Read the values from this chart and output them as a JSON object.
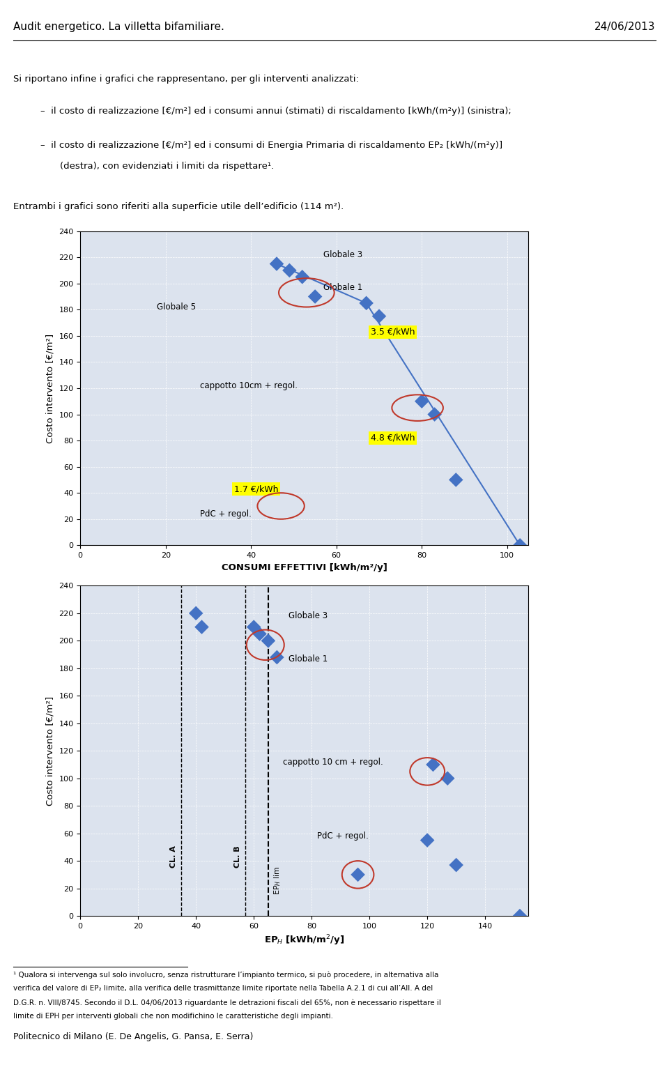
{
  "page_title_left": "Audit energetico. La villetta bifamiliare.",
  "page_title_right": "24/06/2013",
  "intro_text": "Si riportano infine i grafici che rappresentano, per gli interventi analizzati:",
  "bullet1": "il costo di realizzazione [€/m²] ed i consumi annui (stimati) di riscaldamento [kWh/(m²y)] (sinistra);",
  "bullet2_a": "il costo di realizzazione [€/m²] ed i consumi di Energia Primaria di riscaldamento EP₂ [kWh/(m²y)]",
  "bullet2_b": "(destra), con evidenziati i limiti da rispettare¹.",
  "subtitle": "Entrambi i grafici sono riferiti alla superficie utile dell’edificio (114 m²).",
  "chart1": {
    "xlabel": "CONSUMI EFFETTIVI [kWh/m²/y]",
    "ylabel": "Costo intervento [€/m²]",
    "xlim": [
      0,
      105
    ],
    "ylim": [
      0,
      240
    ],
    "xticks": [
      0,
      20,
      40,
      60,
      80,
      100
    ],
    "yticks": [
      0,
      20,
      40,
      60,
      80,
      100,
      120,
      140,
      160,
      180,
      200,
      220,
      240
    ],
    "scatter_x": [
      46,
      49,
      52,
      55,
      67,
      70,
      80,
      83,
      88,
      103
    ],
    "scatter_y": [
      215,
      210,
      205,
      190,
      185,
      175,
      110,
      100,
      50,
      0
    ],
    "line_x": [
      46,
      67,
      103
    ],
    "line_y": [
      215,
      185,
      0
    ],
    "label_Globale3": [
      57,
      222
    ],
    "label_Globale1": [
      57,
      197
    ],
    "label_Globale5": [
      18,
      182
    ],
    "label_cappotto": [
      28,
      122
    ],
    "label_PdC": [
      28,
      24
    ],
    "annot_35": [
      68,
      163
    ],
    "annot_48": [
      68,
      82
    ],
    "annot_17": [
      36,
      43
    ],
    "circles": [
      [
        53,
        193,
        13,
        22
      ],
      [
        79,
        105,
        12,
        20
      ],
      [
        47,
        30,
        11,
        20
      ]
    ],
    "background_color": "#dce3ee"
  },
  "chart2": {
    "xlabel_base": "EP",
    "xlabel_sub": "H",
    "xlabel_rest": " [kWh/m²/y]",
    "ylabel": "Costo intervento [€/m²]",
    "xlim": [
      0,
      155
    ],
    "ylim": [
      0,
      240
    ],
    "xticks": [
      0,
      20,
      40,
      60,
      80,
      100,
      120,
      140
    ],
    "yticks": [
      0,
      20,
      40,
      60,
      80,
      100,
      120,
      140,
      160,
      180,
      200,
      220,
      240
    ],
    "scatter_x": [
      40,
      42,
      60,
      62,
      65,
      68,
      96,
      120,
      122,
      127,
      130,
      152
    ],
    "scatter_y": [
      220,
      210,
      210,
      205,
      200,
      188,
      30,
      55,
      110,
      100,
      37,
      0
    ],
    "label_Globale3": [
      72,
      218
    ],
    "label_Globale1": [
      72,
      187
    ],
    "label_cappotto": [
      70,
      112
    ],
    "label_PdC": [
      82,
      58
    ],
    "vline_CLA": 35,
    "vline_CLB": 57,
    "vline_EPH": 65,
    "circles": [
      [
        64,
        197,
        13,
        22
      ],
      [
        120,
        105,
        12,
        20
      ],
      [
        96,
        30,
        11,
        20
      ]
    ],
    "background_color": "#dce3ee"
  },
  "footnote_line1": "¹ Qualora si intervenga sul solo involucro, senza ristrutturare l’impianto termico, si può procedere, in alternativa alla",
  "footnote_line2": "verifica del valore di EP₂ limite, alla verifica delle trasmittanze limite riportate nella Tabella A.2.1 di cui all’All. A del",
  "footnote_line3": "D.G.R. n. VIII/8745. Secondo il D.L. 04/06/2013 riguardante le detrazioni fiscali del 65%, non è necessario rispettare il",
  "footnote_line4": "limite di EPH per interventi globali che non modifichino le caratteristiche degli impianti.",
  "footer": "Politecnico di Milano (E. De Angelis, G. Pansa, E. Serra)",
  "marker_color": "#4472C4",
  "marker_size": 110,
  "line_color": "#4472C4",
  "circle_color": "#c0392b"
}
